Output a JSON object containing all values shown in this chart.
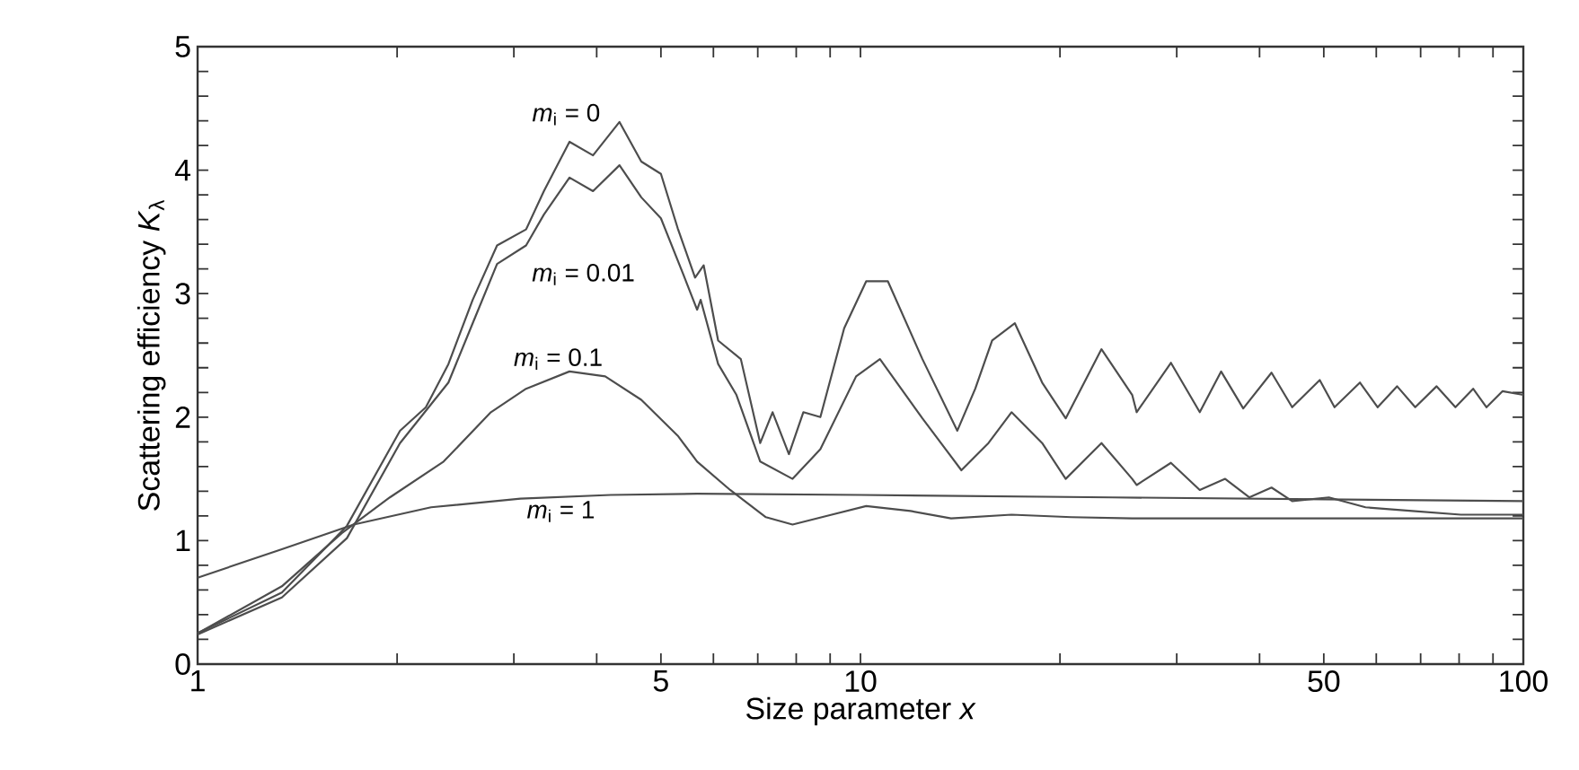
{
  "chart_data": {
    "type": "line",
    "xlabel": "Size parameter *x*",
    "ylabel": "Scattering efficiency *K*$_{λ}$",
    "log": "x",
    "xlim": [
      1,
      100
    ],
    "ylim": [
      0,
      5
    ],
    "xticks": [
      1,
      {
        "value": 2,
        "label": null
      },
      {
        "value": 3,
        "label": null
      },
      {
        "value": 4,
        "label": null
      },
      5,
      {
        "value": 6,
        "label": null
      },
      {
        "value": 7,
        "label": null
      },
      {
        "value": 8,
        "label": null
      },
      {
        "value": 9,
        "label": null
      },
      10,
      {
        "value": 20,
        "label": null
      },
      {
        "value": 30,
        "label": null
      },
      {
        "value": 40,
        "label": null
      },
      50,
      {
        "value": 60,
        "label": null
      },
      {
        "value": 70,
        "label": null
      },
      {
        "value": 80,
        "label": null
      },
      {
        "value": 90,
        "label": null
      },
      100
    ],
    "yticks": [
      0,
      {
        "value": 0.2,
        "label": null
      },
      {
        "value": 0.4,
        "label": null
      },
      {
        "value": 0.6,
        "label": null
      },
      {
        "value": 0.8,
        "label": null
      },
      1,
      {
        "value": 1.2,
        "label": null
      },
      {
        "value": 1.4,
        "label": null
      },
      {
        "value": 1.6,
        "label": null
      },
      {
        "value": 1.8,
        "label": null
      },
      2,
      {
        "value": 2.2,
        "label": null
      },
      {
        "value": 2.4,
        "label": null
      },
      {
        "value": 2.6,
        "label": null
      },
      {
        "value": 2.8,
        "label": null
      },
      3,
      {
        "value": 3.2,
        "label": null
      },
      {
        "value": 3.4,
        "label": null
      },
      {
        "value": 3.6,
        "label": null
      },
      {
        "value": 3.8,
        "label": null
      },
      4,
      {
        "value": 4.2,
        "label": null
      },
      {
        "value": 4.4,
        "label": null
      },
      {
        "value": 4.6,
        "label": null
      },
      {
        "value": 4.8,
        "label": null
      },
      5
    ],
    "series": [
      {
        "color": "#4d4d4d",
        "x": [
          1,
          1.34,
          1.68,
          2.02,
          2.21,
          2.39,
          2.6,
          2.83,
          3.13,
          3.33,
          3.64,
          3.95,
          4.33,
          4.67,
          5.0,
          5.3,
          5.63,
          5.8,
          6.1,
          6.6,
          7.06,
          7.37,
          7.8,
          8.2,
          8.7,
          9.45,
          10.2,
          11.0,
          12.4,
          14.0,
          14.9,
          15.8,
          17.1,
          18.8,
          20.4,
          23.1,
          25.7,
          26.1,
          29.4,
          32.5,
          35.0,
          37.8,
          41.7,
          44.8,
          49.3,
          51.9,
          56.7,
          60.3,
          64.5,
          68.7,
          74.0,
          79,
          84,
          88,
          93,
          100
        ],
        "values": [
          0.25,
          0.58,
          1.12,
          1.89,
          2.08,
          2.43,
          2.95,
          3.39,
          3.52,
          3.83,
          4.23,
          4.12,
          4.39,
          4.07,
          3.97,
          3.53,
          3.13,
          3.23,
          2.62,
          2.47,
          1.79,
          2.04,
          1.7,
          2.04,
          2.0,
          2.72,
          3.1,
          3.1,
          2.47,
          1.89,
          2.23,
          2.62,
          2.76,
          2.28,
          1.99,
          2.55,
          2.18,
          2.04,
          2.44,
          2.04,
          2.37,
          2.07,
          2.36,
          2.08,
          2.3,
          2.08,
          2.28,
          2.08,
          2.25,
          2.08,
          2.25,
          2.08,
          2.23,
          2.08,
          2.21,
          2.18
        ]
      },
      {
        "color": "#4d4d4d",
        "x": [
          1,
          1.34,
          1.68,
          2.02,
          2.39,
          2.6,
          2.83,
          3.13,
          3.33,
          3.64,
          3.95,
          4.33,
          4.67,
          5.0,
          5.4,
          5.67,
          5.74,
          6.1,
          6.5,
          7.06,
          7.9,
          8.7,
          9.85,
          10.7,
          12.4,
          14.2,
          15.6,
          16.9,
          18.8,
          20.4,
          23.1,
          25.7,
          26.1,
          29.4,
          32.5,
          35.5,
          38.6,
          41.7,
          44.8,
          50.9,
          57.8,
          68,
          80.5,
          100
        ],
        "values": [
          0.24,
          0.54,
          1.02,
          1.79,
          2.28,
          2.76,
          3.24,
          3.39,
          3.64,
          3.94,
          3.83,
          4.04,
          3.78,
          3.61,
          3.16,
          2.87,
          2.95,
          2.43,
          2.18,
          1.64,
          1.5,
          1.74,
          2.33,
          2.47,
          1.99,
          1.57,
          1.79,
          2.04,
          1.79,
          1.5,
          1.79,
          1.5,
          1.45,
          1.63,
          1.41,
          1.5,
          1.35,
          1.43,
          1.32,
          1.35,
          1.27,
          1.24,
          1.21,
          1.21
        ]
      },
      {
        "color": "#4d4d4d",
        "x": [
          1,
          1.34,
          1.65,
          1.95,
          2.35,
          2.77,
          3.13,
          3.64,
          4.12,
          4.67,
          5.3,
          5.67,
          6.36,
          7.2,
          7.9,
          9.05,
          10.2,
          11.9,
          13.7,
          16.9,
          20.8,
          25.7,
          40,
          100
        ],
        "values": [
          0.25,
          0.63,
          1.06,
          1.35,
          1.64,
          2.04,
          2.23,
          2.37,
          2.33,
          2.14,
          1.85,
          1.64,
          1.41,
          1.19,
          1.13,
          1.21,
          1.28,
          1.24,
          1.18,
          1.21,
          1.19,
          1.18,
          1.18,
          1.18
        ]
      },
      {
        "color": "#4d4d4d",
        "x": [
          1,
          1.34,
          1.72,
          2.25,
          3.07,
          4.2,
          5.67,
          10,
          24,
          100
        ],
        "values": [
          0.7,
          0.93,
          1.13,
          1.27,
          1.34,
          1.37,
          1.38,
          1.37,
          1.35,
          1.32
        ]
      }
    ],
    "annotations": [
      "*m*$_{i}$ = 0",
      "*m*$_{i}$ = 0.01",
      "*m*$_{i}$ = 0.1",
      "*m*$_{i}$ = 1"
    ]
  }
}
